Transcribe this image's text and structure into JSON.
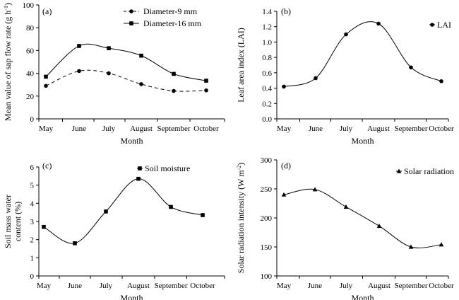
{
  "chart_data": [
    {
      "type": "line",
      "panel": "(a)",
      "categories": [
        "May",
        "June",
        "July",
        "August",
        "September",
        "October"
      ],
      "xlabel": "Month",
      "ylabel_main": "Mean value of  sap flow rate (g h",
      "ylabel_sup": "-1",
      "ylabel_end": ")",
      "ylim": [
        0,
        100
      ],
      "yticks": [
        "0",
        "20",
        "40",
        "60",
        "80",
        "100"
      ],
      "ytick_values": [
        0,
        20,
        40,
        60,
        80,
        100
      ],
      "legend_position": "top-right",
      "series": [
        {
          "name": "Diameter-9 mm",
          "values": [
            29,
            42,
            40,
            30.5,
            24.5,
            25
          ],
          "marker": "circle",
          "dash": true
        },
        {
          "name": "Diameter-16 mm",
          "values": [
            37,
            64,
            62,
            55.5,
            39.5,
            33.5
          ],
          "marker": "square",
          "dash": false
        }
      ]
    },
    {
      "type": "line",
      "panel": "(b)",
      "categories": [
        "May",
        "June",
        "July",
        "August",
        "September",
        "October"
      ],
      "xlabel": "Month",
      "ylabel_main": "Leaf area index (LAI)",
      "ylabel_sup": "",
      "ylabel_end": "",
      "ylim": [
        0,
        1.4
      ],
      "yticks": [
        "0.0",
        "0.2",
        "0.4",
        "0.6",
        "0.8",
        "1.0",
        "1.2",
        "1.4"
      ],
      "ytick_values": [
        0,
        0.2,
        0.4,
        0.6,
        0.8,
        1.0,
        1.2,
        1.4
      ],
      "legend_position": "top-right",
      "series": [
        {
          "name": "LAI",
          "values": [
            0.42,
            0.53,
            1.1,
            1.24,
            0.67,
            0.49
          ],
          "marker": "circle",
          "dash": false
        }
      ]
    },
    {
      "type": "line",
      "panel": "(c)",
      "categories": [
        "May",
        "June",
        "July",
        "August",
        "September",
        "October"
      ],
      "xlabel": "Month",
      "ylabel_main": "Soil mass water",
      "ylabel_line2": "content (%)",
      "ylabel_sup": "",
      "ylabel_end": "",
      "ylim": [
        0,
        6
      ],
      "yticks": [
        "0",
        "1",
        "2",
        "3",
        "4",
        "5",
        "6"
      ],
      "ytick_values": [
        0,
        1,
        2,
        3,
        4,
        5,
        6
      ],
      "legend_position": "top-right",
      "series": [
        {
          "name": "Soil moisture",
          "values": [
            2.7,
            1.8,
            3.55,
            5.35,
            3.8,
            3.35
          ],
          "marker": "square",
          "dash": false
        }
      ]
    },
    {
      "type": "line",
      "panel": "(d)",
      "categories": [
        "May",
        "June",
        "July",
        "August",
        "September",
        "October"
      ],
      "xlabel": "Month",
      "ylabel_main": "Solar radiation intensity (W m",
      "ylabel_sup": "-2",
      "ylabel_end": ")",
      "ylim": [
        100,
        300
      ],
      "yticks": [
        "100",
        "150",
        "200",
        "250",
        "300"
      ],
      "ytick_values": [
        100,
        150,
        200,
        250,
        300
      ],
      "legend_position": "top-right",
      "series": [
        {
          "name": "Solar radiation",
          "values": [
            240,
            249,
            219,
            186,
            150,
            154
          ],
          "marker": "triangle",
          "dash": false
        }
      ]
    }
  ]
}
